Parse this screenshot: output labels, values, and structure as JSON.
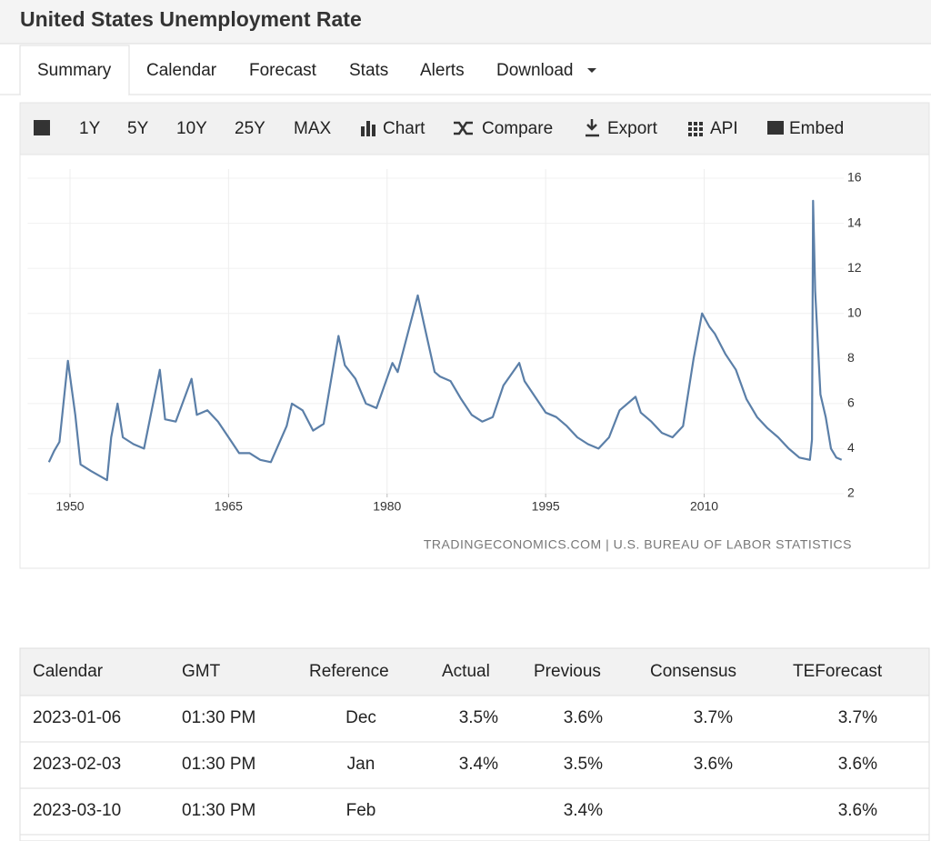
{
  "header": {
    "title": "United States Unemployment Rate"
  },
  "tabs": [
    "Summary",
    "Calendar",
    "Forecast",
    "Stats",
    "Alerts",
    "Download"
  ],
  "toolbar": [
    "1Y",
    "5Y",
    "10Y",
    "25Y",
    "MAX",
    "Chart",
    "Compare",
    "Export",
    "API",
    "Embed"
  ],
  "chart_data": {
    "type": "line",
    "color": "#5b7fa8",
    "grid": true,
    "y_axis_side": "right",
    "source": "TRADINGECONOMICS.COM | U.S. BUREAU OF LABOR STATISTICS",
    "x": [
      1948.0,
      1948.5,
      1949.0,
      1949.8,
      1950.5,
      1951.0,
      1952.0,
      1953.5,
      1953.9,
      1954.5,
      1955.0,
      1956.0,
      1957.0,
      1958.5,
      1959.0,
      1960.0,
      1961.5,
      1962.0,
      1963.0,
      1964.0,
      1965.0,
      1966.0,
      1967.0,
      1968.0,
      1969.0,
      1970.5,
      1971.0,
      1972.0,
      1973.0,
      1974.0,
      1975.4,
      1976.0,
      1977.0,
      1978.0,
      1979.0,
      1980.5,
      1981.0,
      1982.9,
      1983.5,
      1984.5,
      1985.0,
      1986.0,
      1987.0,
      1988.0,
      1989.0,
      1990.0,
      1991.0,
      1992.5,
      1993.0,
      1994.0,
      1995.0,
      1996.0,
      1997.0,
      1998.0,
      1999.0,
      2000.0,
      2001.0,
      2002.0,
      2003.5,
      2004.0,
      2005.0,
      2006.0,
      2007.0,
      2008.0,
      2009.0,
      2009.8,
      2010.5,
      2011.0,
      2012.0,
      2013.0,
      2014.0,
      2015.0,
      2016.0,
      2017.0,
      2018.0,
      2019.0,
      2020.0,
      2020.2,
      2020.3,
      2020.5,
      2021.0,
      2021.5,
      2022.0,
      2022.5,
      2023.0
    ],
    "values": [
      3.4,
      3.9,
      4.3,
      7.9,
      5.5,
      3.3,
      3.0,
      2.6,
      4.5,
      6.0,
      4.5,
      4.2,
      4.0,
      7.5,
      5.3,
      5.2,
      7.1,
      5.5,
      5.7,
      5.2,
      4.5,
      3.8,
      3.8,
      3.5,
      3.4,
      5.0,
      6.0,
      5.7,
      4.8,
      5.1,
      9.0,
      7.7,
      7.1,
      6.0,
      5.8,
      7.8,
      7.4,
      10.8,
      9.5,
      7.4,
      7.2,
      7.0,
      6.2,
      5.5,
      5.2,
      5.4,
      6.8,
      7.8,
      7.0,
      6.3,
      5.6,
      5.4,
      5.0,
      4.5,
      4.2,
      4.0,
      4.5,
      5.7,
      6.3,
      5.6,
      5.2,
      4.7,
      4.5,
      5.0,
      8.0,
      10.0,
      9.4,
      9.1,
      8.2,
      7.5,
      6.2,
      5.4,
      4.9,
      4.5,
      4.0,
      3.6,
      3.5,
      4.4,
      15.0,
      11.0,
      6.4,
      5.4,
      4.0,
      3.6,
      3.5
    ],
    "xlim": [
      1946,
      2023.2
    ],
    "xticks": [
      1950,
      1965,
      1980,
      1995,
      2010
    ],
    "ylim": [
      2,
      16
    ],
    "yticks": [
      2,
      4,
      6,
      8,
      10,
      12,
      14,
      16
    ]
  },
  "table": {
    "header": [
      "Calendar",
      "GMT",
      "Reference",
      "Actual",
      "Previous",
      "Consensus",
      "TEForecast"
    ],
    "rows": [
      [
        "2023-01-06",
        "01:30 PM",
        "Dec",
        "3.5%",
        "3.6%",
        "3.7%",
        "3.7%"
      ],
      [
        "2023-02-03",
        "01:30 PM",
        "Jan",
        "3.4%",
        "3.5%",
        "3.6%",
        "3.6%"
      ],
      [
        "2023-03-10",
        "01:30 PM",
        "Feb",
        null,
        "3.4%",
        null,
        "3.6%"
      ]
    ]
  }
}
